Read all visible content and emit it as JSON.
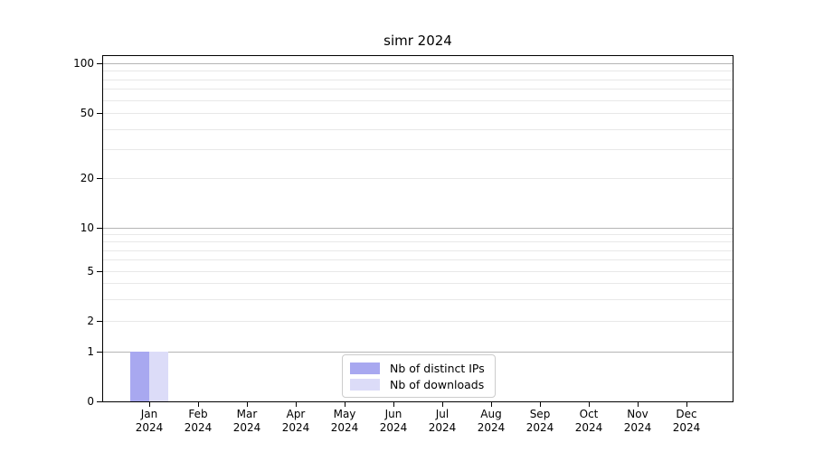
{
  "chart_data": {
    "type": "bar",
    "title": "simr 2024",
    "xlabel": "",
    "ylabel": "",
    "yscale": "log above 1, linear 0-1 (symlog-like)",
    "ylim": [
      0,
      110
    ],
    "yticks": [
      0,
      1,
      2,
      5,
      10,
      20,
      50,
      100
    ],
    "grid": "horizontal, major (1,10,100) darker + minor lighter",
    "legend_position": "lower center",
    "categories": [
      {
        "month": "Jan",
        "year": "2024"
      },
      {
        "month": "Feb",
        "year": "2024"
      },
      {
        "month": "Mar",
        "year": "2024"
      },
      {
        "month": "Apr",
        "year": "2024"
      },
      {
        "month": "May",
        "year": "2024"
      },
      {
        "month": "Jun",
        "year": "2024"
      },
      {
        "month": "Jul",
        "year": "2024"
      },
      {
        "month": "Aug",
        "year": "2024"
      },
      {
        "month": "Sep",
        "year": "2024"
      },
      {
        "month": "Oct",
        "year": "2024"
      },
      {
        "month": "Nov",
        "year": "2024"
      },
      {
        "month": "Dec",
        "year": "2024"
      }
    ],
    "series": [
      {
        "name": "Nb of distinct IPs",
        "color": "#a8a8f0",
        "values": [
          1,
          0,
          0,
          0,
          0,
          0,
          0,
          0,
          0,
          0,
          0,
          0
        ]
      },
      {
        "name": "Nb of downloads",
        "color": "#dcdcf8",
        "values": [
          1,
          0,
          0,
          0,
          0,
          0,
          0,
          0,
          0,
          0,
          0,
          0
        ]
      }
    ]
  },
  "colors": {
    "background": "#ffffff",
    "axis": "#000000",
    "grid_major": "#b5b5b5",
    "grid_minor": "#e8e8e8",
    "legend_border": "#cccccc",
    "text": "#000000"
  }
}
